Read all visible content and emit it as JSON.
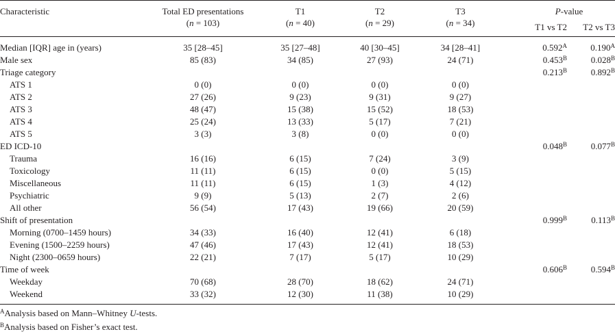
{
  "table": {
    "headers": {
      "characteristic": "Characteristic",
      "total_label": "Total ED presentations",
      "total_n": "(n = 103)",
      "t1_label": "T1",
      "t1_n": "(n = 40)",
      "t2_label": "T2",
      "t2_n": "(n = 29)",
      "t3_label": "T3",
      "t3_n": "(n = 34)",
      "pvalue_label": "P-value",
      "pvalue_italic": "P",
      "pvalue_rest": "-value",
      "t1_vs_t2": "T1 vs T2",
      "t2_vs_t3": "T2 vs T3"
    },
    "rows": [
      {
        "label": "Median [IQR] age in (years)",
        "indent": false,
        "total": "35 [28–45]",
        "t1": "35 [27–48]",
        "t2": "40 [30–45]",
        "t3": "34 [28–41]",
        "p12": "0.592",
        "p12_sup": "A",
        "p23": "0.190",
        "p23_sup": "A"
      },
      {
        "label": "Male sex",
        "indent": false,
        "total": "85 (83)",
        "t1": "34 (85)",
        "t2": "27 (93)",
        "t3": "24 (71)",
        "p12": "0.453",
        "p12_sup": "B",
        "p23": "0.028",
        "p23_sup": "B"
      },
      {
        "label": "Triage category",
        "indent": false,
        "total": "",
        "t1": "",
        "t2": "",
        "t3": "",
        "p12": "0.213",
        "p12_sup": "B",
        "p23": "0.892",
        "p23_sup": "B"
      },
      {
        "label": "ATS 1",
        "indent": true,
        "total": "0 (0)",
        "t1": "0 (0)",
        "t2": "0 (0)",
        "t3": "0 (0)",
        "p12": "",
        "p12_sup": "",
        "p23": "",
        "p23_sup": ""
      },
      {
        "label": "ATS 2",
        "indent": true,
        "total": "27 (26)",
        "t1": "9 (23)",
        "t2": "9 (31)",
        "t3": "9 (27)",
        "p12": "",
        "p12_sup": "",
        "p23": "",
        "p23_sup": ""
      },
      {
        "label": "ATS 3",
        "indent": true,
        "total": "48 (47)",
        "t1": "15 (38)",
        "t2": "15 (52)",
        "t3": "18 (53)",
        "p12": "",
        "p12_sup": "",
        "p23": "",
        "p23_sup": ""
      },
      {
        "label": "ATS 4",
        "indent": true,
        "total": "25 (24)",
        "t1": "13 (33)",
        "t2": "5 (17)",
        "t3": "7 (21)",
        "p12": "",
        "p12_sup": "",
        "p23": "",
        "p23_sup": ""
      },
      {
        "label": "ATS 5",
        "indent": true,
        "total": "3 (3)",
        "t1": "3 (8)",
        "t2": "0 (0)",
        "t3": "0 (0)",
        "p12": "",
        "p12_sup": "",
        "p23": "",
        "p23_sup": ""
      },
      {
        "label": "ED ICD-10",
        "indent": false,
        "total": "",
        "t1": "",
        "t2": "",
        "t3": "",
        "p12": "0.048",
        "p12_sup": "B",
        "p23": "0.077",
        "p23_sup": "B"
      },
      {
        "label": "Trauma",
        "indent": true,
        "total": "16 (16)",
        "t1": "6 (15)",
        "t2": "7 (24)",
        "t3": "3 (9)",
        "p12": "",
        "p12_sup": "",
        "p23": "",
        "p23_sup": ""
      },
      {
        "label": "Toxicology",
        "indent": true,
        "total": "11 (11)",
        "t1": "6 (15)",
        "t2": "0 (0)",
        "t3": "5 (15)",
        "p12": "",
        "p12_sup": "",
        "p23": "",
        "p23_sup": ""
      },
      {
        "label": "Miscellaneous",
        "indent": true,
        "total": "11 (11)",
        "t1": "6 (15)",
        "t2": "1 (3)",
        "t3": "4 (12)",
        "p12": "",
        "p12_sup": "",
        "p23": "",
        "p23_sup": ""
      },
      {
        "label": "Psychiatric",
        "indent": true,
        "total": "9 (9)",
        "t1": "5 (13)",
        "t2": "2 (7)",
        "t3": "2 (6)",
        "p12": "",
        "p12_sup": "",
        "p23": "",
        "p23_sup": ""
      },
      {
        "label": "All other",
        "indent": true,
        "total": "56 (54)",
        "t1": "17 (43)",
        "t2": "19 (66)",
        "t3": "20 (59)",
        "p12": "",
        "p12_sup": "",
        "p23": "",
        "p23_sup": ""
      },
      {
        "label": "Shift of presentation",
        "indent": false,
        "total": "",
        "t1": "",
        "t2": "",
        "t3": "",
        "p12": "0.999",
        "p12_sup": "B",
        "p23": "0.113",
        "p23_sup": "B"
      },
      {
        "label": "Morning (0700–1459 hours)",
        "indent": true,
        "total": "34 (33)",
        "t1": "16 (40)",
        "t2": "12 (41)",
        "t3": "6 (18)",
        "p12": "",
        "p12_sup": "",
        "p23": "",
        "p23_sup": ""
      },
      {
        "label": "Evening (1500–2259 hours)",
        "indent": true,
        "total": "47 (46)",
        "t1": "17 (43)",
        "t2": "12 (41)",
        "t3": "18 (53)",
        "p12": "",
        "p12_sup": "",
        "p23": "",
        "p23_sup": ""
      },
      {
        "label": "Night (2300–0659 hours)",
        "indent": true,
        "total": "22 (21)",
        "t1": "7 (17)",
        "t2": "5 (17)",
        "t3": "10 (29)",
        "p12": "",
        "p12_sup": "",
        "p23": "",
        "p23_sup": ""
      },
      {
        "label": "Time of week",
        "indent": false,
        "total": "",
        "t1": "",
        "t2": "",
        "t3": "",
        "p12": "0.606",
        "p12_sup": "B",
        "p23": "0.594",
        "p23_sup": "B"
      },
      {
        "label": "Weekday",
        "indent": true,
        "total": "70 (68)",
        "t1": "28 (70)",
        "t2": "18 (62)",
        "t3": "24 (71)",
        "p12": "",
        "p12_sup": "",
        "p23": "",
        "p23_sup": ""
      },
      {
        "label": "Weekend",
        "indent": true,
        "total": "33 (32)",
        "t1": "12 (30)",
        "t2": "11 (38)",
        "t3": "10 (29)",
        "p12": "",
        "p12_sup": "",
        "p23": "",
        "p23_sup": ""
      }
    ]
  },
  "footnotes": [
    {
      "marker": "A",
      "before": "Analysis based on Mann–Whitney ",
      "italic": "U",
      "after": "-tests."
    },
    {
      "marker": "B",
      "before": "Analysis based on Fisher’s exact test.",
      "italic": "",
      "after": ""
    }
  ]
}
